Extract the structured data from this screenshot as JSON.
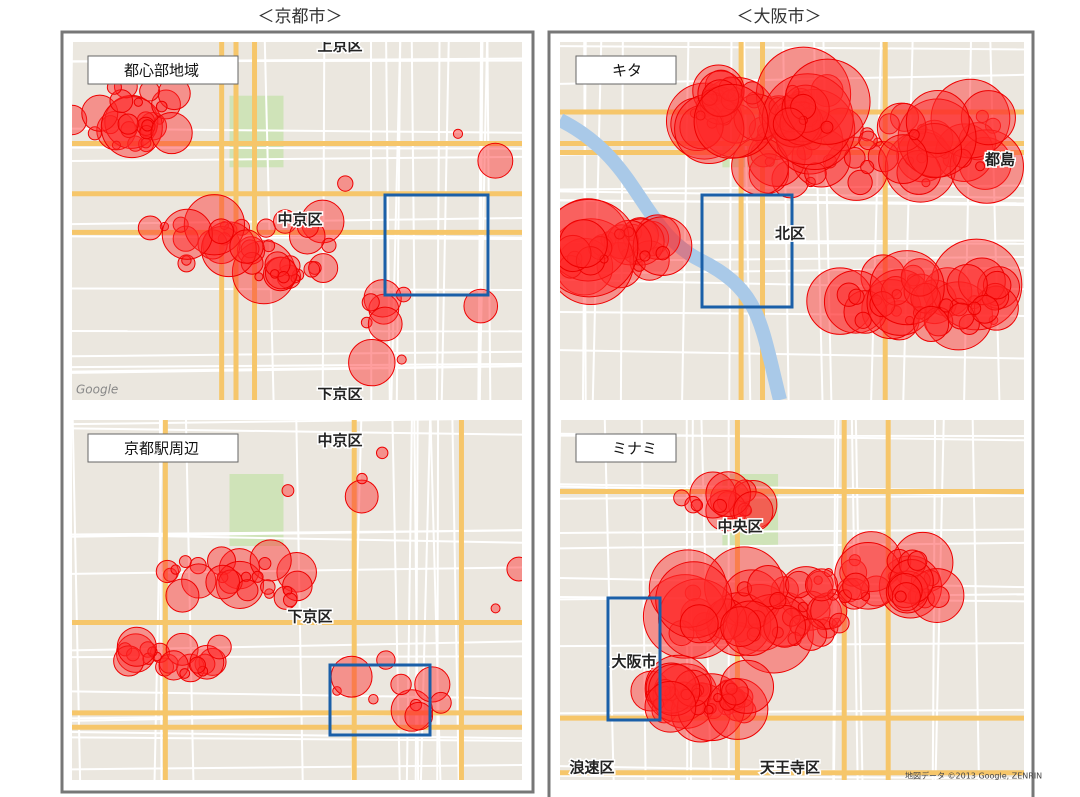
{
  "headers": {
    "kyoto": "＜京都市＞",
    "osaka": "＜大阪市＞"
  },
  "panels": [
    {
      "label": "都心部地域",
      "places": [
        "上京区",
        "中京区",
        "下京区"
      ]
    },
    {
      "label": "京都駅周辺",
      "places": [
        "中京区",
        "下京区"
      ]
    },
    {
      "label": "キタ",
      "places": [
        "北区",
        "都島"
      ]
    },
    {
      "label": "ミナミ",
      "places": [
        "中央区",
        "大阪市",
        "浪速区",
        "天王寺区"
      ]
    }
  ],
  "google": "Google",
  "attribution": "地図データ ©2013 Google, ZENRIN"
}
